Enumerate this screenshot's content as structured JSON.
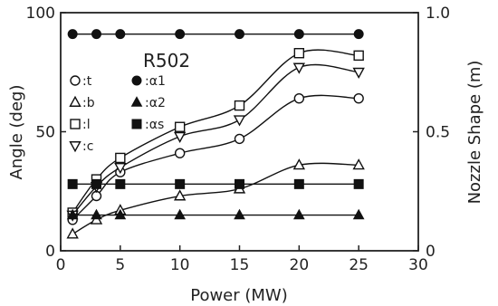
{
  "chart_data": {
    "type": "line",
    "title": "",
    "annotation": "R502",
    "xlabel": "Power (MW)",
    "ylabel_left": "Angle (deg)",
    "ylabel_right": "Nozzle Shape (m)",
    "xlim": [
      0,
      30
    ],
    "ylim_left": [
      0,
      100
    ],
    "ylim_right": [
      0,
      1.0
    ],
    "x_ticks": [
      "0",
      "5",
      "10",
      "15",
      "20",
      "25",
      "30"
    ],
    "y_ticks_left": [
      "0",
      "50",
      "100"
    ],
    "y_ticks_right": [
      "0",
      "0.5",
      "1.0"
    ],
    "legend_position": "upper-left (inside plot)",
    "grid": false,
    "x": [
      1,
      3,
      5,
      10,
      15,
      20,
      25
    ],
    "series": [
      {
        "name": "t",
        "label": ":t",
        "axis": "left",
        "marker": "open-circle",
        "smooth": true,
        "values": [
          13,
          23,
          33,
          41,
          47,
          64,
          64
        ]
      },
      {
        "name": "b",
        "label": ":b",
        "axis": "left",
        "marker": "open-triangle-up",
        "smooth": true,
        "values": [
          7,
          13,
          17,
          23,
          26,
          36,
          36
        ]
      },
      {
        "name": "l",
        "label": ":l",
        "axis": "left",
        "marker": "open-square",
        "smooth": true,
        "values": [
          16,
          30,
          39,
          52,
          61,
          83,
          82
        ]
      },
      {
        "name": "c",
        "label": ":c",
        "axis": "left",
        "marker": "open-triangle-down",
        "smooth": true,
        "values": [
          15,
          27,
          35,
          48,
          55,
          77,
          75
        ]
      },
      {
        "name": "α1",
        "label": ":α1",
        "axis": "left",
        "marker": "filled-circle",
        "smooth": false,
        "values": [
          91,
          91,
          91,
          91,
          91,
          91,
          91
        ]
      },
      {
        "name": "α2",
        "label": ":α2",
        "axis": "left",
        "marker": "filled-triangle-up",
        "smooth": false,
        "values": [
          15,
          15,
          15,
          15,
          15,
          15,
          15
        ]
      },
      {
        "name": "αs",
        "label": ":αs",
        "axis": "left",
        "marker": "filled-square",
        "smooth": false,
        "values": [
          28,
          28,
          28,
          28,
          28,
          28,
          28
        ]
      }
    ]
  }
}
